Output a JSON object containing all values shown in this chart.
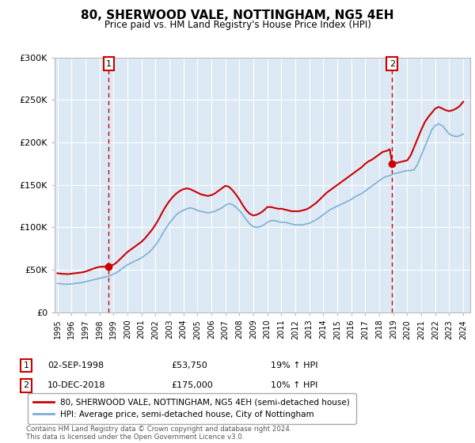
{
  "title": "80, SHERWOOD VALE, NOTTINGHAM, NG5 4EH",
  "subtitle": "Price paid vs. HM Land Registry's House Price Index (HPI)",
  "ylim": [
    0,
    300000
  ],
  "xlim_start": 1994.8,
  "xlim_end": 2024.5,
  "xticks": [
    1995,
    1996,
    1997,
    1998,
    1999,
    2000,
    2001,
    2002,
    2003,
    2004,
    2005,
    2006,
    2007,
    2008,
    2009,
    2010,
    2011,
    2012,
    2013,
    2014,
    2015,
    2016,
    2017,
    2018,
    2019,
    2020,
    2021,
    2022,
    2023,
    2024
  ],
  "bg_color": "#dce9f5",
  "fig_bg": "#ffffff",
  "red_line_color": "#cc0000",
  "blue_line_color": "#7bafd4",
  "vline_color": "#cc0000",
  "marker_color": "#cc0000",
  "point1_x": 1998.67,
  "point1_y": 53750,
  "point2_x": 2018.92,
  "point2_y": 175000,
  "legend_line1": "80, SHERWOOD VALE, NOTTINGHAM, NG5 4EH (semi-detached house)",
  "legend_line2": "HPI: Average price, semi-detached house, City of Nottingham",
  "table_row1_date": "02-SEP-1998",
  "table_row1_price": "£53,750",
  "table_row1_hpi": "19% ↑ HPI",
  "table_row2_date": "10-DEC-2018",
  "table_row2_price": "£175,000",
  "table_row2_hpi": "10% ↑ HPI",
  "footer": "Contains HM Land Registry data © Crown copyright and database right 2024.\nThis data is licensed under the Open Government Licence v3.0.",
  "hpi_data_x": [
    1995.0,
    1995.25,
    1995.5,
    1995.75,
    1996.0,
    1996.25,
    1996.5,
    1996.75,
    1997.0,
    1997.25,
    1997.5,
    1997.75,
    1998.0,
    1998.25,
    1998.5,
    1998.75,
    1999.0,
    1999.25,
    1999.5,
    1999.75,
    2000.0,
    2000.25,
    2000.5,
    2000.75,
    2001.0,
    2001.25,
    2001.5,
    2001.75,
    2002.0,
    2002.25,
    2002.5,
    2002.75,
    2003.0,
    2003.25,
    2003.5,
    2003.75,
    2004.0,
    2004.25,
    2004.5,
    2004.75,
    2005.0,
    2005.25,
    2005.5,
    2005.75,
    2006.0,
    2006.25,
    2006.5,
    2006.75,
    2007.0,
    2007.25,
    2007.5,
    2007.75,
    2008.0,
    2008.25,
    2008.5,
    2008.75,
    2009.0,
    2009.25,
    2009.5,
    2009.75,
    2010.0,
    2010.25,
    2010.5,
    2010.75,
    2011.0,
    2011.25,
    2011.5,
    2011.75,
    2012.0,
    2012.25,
    2012.5,
    2012.75,
    2013.0,
    2013.25,
    2013.5,
    2013.75,
    2014.0,
    2014.25,
    2014.5,
    2014.75,
    2015.0,
    2015.25,
    2015.5,
    2015.75,
    2016.0,
    2016.25,
    2016.5,
    2016.75,
    2017.0,
    2017.25,
    2017.5,
    2017.75,
    2018.0,
    2018.25,
    2018.5,
    2018.75,
    2019.0,
    2019.25,
    2019.5,
    2019.75,
    2020.0,
    2020.25,
    2020.5,
    2020.75,
    2021.0,
    2021.25,
    2021.5,
    2021.75,
    2022.0,
    2022.25,
    2022.5,
    2022.75,
    2023.0,
    2023.25,
    2023.5,
    2023.75,
    2024.0
  ],
  "hpi_data_y": [
    34000,
    33500,
    33200,
    33000,
    33500,
    34000,
    34500,
    35000,
    36000,
    37000,
    38000,
    39000,
    40000,
    41000,
    42000,
    43000,
    45000,
    47000,
    50000,
    53000,
    56000,
    58000,
    60000,
    62000,
    64000,
    67000,
    70000,
    74000,
    79000,
    85000,
    92000,
    99000,
    105000,
    110000,
    115000,
    118000,
    120000,
    122000,
    123000,
    122000,
    120000,
    119000,
    118000,
    117000,
    118000,
    119000,
    121000,
    123000,
    126000,
    128000,
    127000,
    124000,
    120000,
    115000,
    109000,
    104000,
    101000,
    100000,
    101000,
    103000,
    106000,
    108000,
    108000,
    107000,
    106000,
    106000,
    105000,
    104000,
    103000,
    103000,
    103000,
    104000,
    105000,
    107000,
    109000,
    112000,
    115000,
    118000,
    121000,
    123000,
    125000,
    127000,
    129000,
    131000,
    133000,
    136000,
    138000,
    140000,
    143000,
    146000,
    149000,
    152000,
    155000,
    158000,
    160000,
    161000,
    163000,
    164000,
    165000,
    166000,
    167000,
    167000,
    168000,
    175000,
    185000,
    195000,
    205000,
    215000,
    220000,
    222000,
    220000,
    215000,
    210000,
    208000,
    207000,
    208000,
    210000
  ],
  "price_paid_x": [
    1995.0,
    1995.25,
    1995.5,
    1995.75,
    1996.0,
    1996.25,
    1996.5,
    1996.75,
    1997.0,
    1997.25,
    1997.5,
    1997.75,
    1998.0,
    1998.25,
    1998.5,
    1998.67,
    1999.0,
    1999.25,
    1999.5,
    1999.75,
    2000.0,
    2000.25,
    2000.5,
    2000.75,
    2001.0,
    2001.25,
    2001.5,
    2001.75,
    2002.0,
    2002.25,
    2002.5,
    2002.75,
    2003.0,
    2003.25,
    2003.5,
    2003.75,
    2004.0,
    2004.25,
    2004.5,
    2004.75,
    2005.0,
    2005.25,
    2005.5,
    2005.75,
    2006.0,
    2006.25,
    2006.5,
    2006.75,
    2007.0,
    2007.25,
    2007.5,
    2007.75,
    2008.0,
    2008.25,
    2008.5,
    2008.75,
    2009.0,
    2009.25,
    2009.5,
    2009.75,
    2010.0,
    2010.25,
    2010.5,
    2010.75,
    2011.0,
    2011.25,
    2011.5,
    2011.75,
    2012.0,
    2012.25,
    2012.5,
    2012.75,
    2013.0,
    2013.25,
    2013.5,
    2013.75,
    2014.0,
    2014.25,
    2014.5,
    2014.75,
    2015.0,
    2015.25,
    2015.5,
    2015.75,
    2016.0,
    2016.25,
    2016.5,
    2016.75,
    2017.0,
    2017.25,
    2017.5,
    2017.75,
    2018.0,
    2018.25,
    2018.5,
    2018.75,
    2018.92,
    2019.25,
    2019.5,
    2019.75,
    2020.0,
    2020.25,
    2020.5,
    2020.75,
    2021.0,
    2021.25,
    2021.5,
    2021.75,
    2022.0,
    2022.25,
    2022.5,
    2022.75,
    2023.0,
    2023.25,
    2023.5,
    2023.75,
    2024.0
  ],
  "price_paid_y": [
    46000,
    45500,
    45200,
    45000,
    45500,
    46000,
    46500,
    47000,
    48000,
    49500,
    51000,
    52500,
    53500,
    53750,
    53750,
    53750,
    56000,
    59000,
    63000,
    67000,
    71000,
    74000,
    77000,
    80000,
    83000,
    87000,
    92000,
    97000,
    103000,
    110000,
    118000,
    125000,
    131000,
    136000,
    140000,
    143000,
    145000,
    146000,
    145000,
    143000,
    141000,
    139000,
    138000,
    137000,
    138000,
    140000,
    143000,
    146000,
    149000,
    148000,
    144000,
    139000,
    133000,
    126000,
    120000,
    116000,
    114000,
    115000,
    117000,
    120000,
    124000,
    124000,
    123000,
    122000,
    122000,
    121000,
    120000,
    119000,
    119000,
    119000,
    120000,
    121000,
    123000,
    126000,
    129000,
    133000,
    137000,
    141000,
    144000,
    147000,
    150000,
    153000,
    156000,
    159000,
    162000,
    165000,
    168000,
    171000,
    175000,
    178000,
    180000,
    183000,
    186000,
    189000,
    190000,
    192000,
    175000,
    176000,
    177000,
    178000,
    179000,
    185000,
    195000,
    205000,
    215000,
    224000,
    230000,
    235000,
    240000,
    242000,
    240000,
    238000,
    237000,
    238000,
    240000,
    243000,
    248000
  ]
}
